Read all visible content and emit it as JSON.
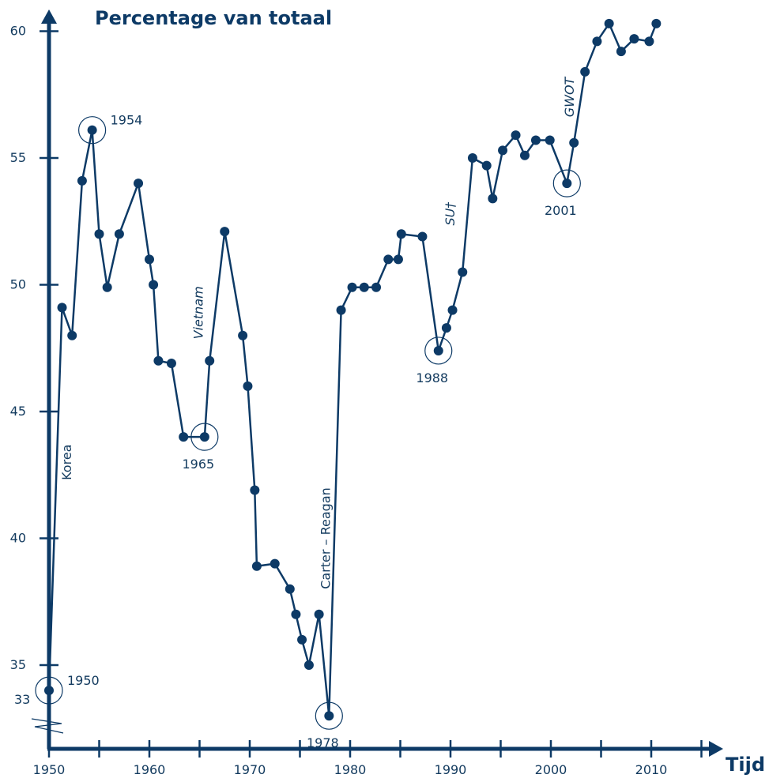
{
  "chart_data": {
    "type": "line",
    "title": "Percentage van totaal",
    "xlabel": "Tijd",
    "ylabel": "",
    "xlim": [
      1950,
      2010
    ],
    "ylim": [
      33,
      60
    ],
    "x_ticks": [
      1950,
      1960,
      1970,
      1980,
      1990,
      2000,
      2010
    ],
    "x_tick_labels": [
      "1950",
      "1960",
      "1970",
      "1980",
      "1990",
      "2000",
      "2010"
    ],
    "y_ticks": [
      35,
      40,
      45,
      50,
      55,
      60
    ],
    "y_tick_labels": [
      "35",
      "40",
      "45",
      "50",
      "55",
      "60"
    ],
    "y_break_label": "33",
    "grid": false,
    "line_color": "#0d3a66",
    "series": [
      {
        "points": [
          [
            1950,
            34
          ],
          [
            1951.3,
            49.1
          ],
          [
            1952.3,
            48
          ],
          [
            1953.3,
            54.1
          ],
          [
            1954.3,
            56.1
          ],
          [
            1955,
            52
          ],
          [
            1955.8,
            49.9
          ],
          [
            1957,
            52
          ],
          [
            1958.9,
            54
          ],
          [
            1960,
            51
          ],
          [
            1960.4,
            50
          ],
          [
            1960.9,
            47
          ],
          [
            1962.2,
            46.9
          ],
          [
            1963.4,
            44
          ],
          [
            1965.5,
            44
          ],
          [
            1966,
            47
          ],
          [
            1967.5,
            52.1
          ],
          [
            1969.3,
            48
          ],
          [
            1969.8,
            46
          ],
          [
            1970.5,
            41.9
          ],
          [
            1970.7,
            38.9
          ],
          [
            1972.5,
            39
          ],
          [
            1974,
            38
          ],
          [
            1974.6,
            37
          ],
          [
            1975.2,
            36
          ],
          [
            1975.9,
            35
          ],
          [
            1976.9,
            37
          ],
          [
            1977.9,
            33
          ],
          [
            1979.1,
            49
          ],
          [
            1980.2,
            49.9
          ],
          [
            1981.4,
            49.9
          ],
          [
            1982.6,
            49.9
          ],
          [
            1983.8,
            51
          ],
          [
            1984.8,
            51
          ],
          [
            1985.1,
            52
          ],
          [
            1987.2,
            51.9
          ],
          [
            1988.8,
            47.4
          ],
          [
            1989.6,
            48.3
          ],
          [
            1990.2,
            49
          ],
          [
            1991.2,
            50.5
          ],
          [
            1992.2,
            55
          ],
          [
            1993.6,
            54.7
          ],
          [
            1994.2,
            53.4
          ],
          [
            1995.2,
            55.3
          ],
          [
            1996.5,
            55.9
          ],
          [
            1997.4,
            55.1
          ],
          [
            1998.5,
            55.7
          ],
          [
            1999.9,
            55.7
          ],
          [
            2001.6,
            54
          ],
          [
            2002.3,
            55.6
          ],
          [
            2003.4,
            58.4
          ],
          [
            2004.6,
            59.6
          ],
          [
            2005.8,
            60.3
          ],
          [
            2007,
            59.2
          ],
          [
            2008.3,
            59.7
          ],
          [
            2009.8,
            59.6
          ],
          [
            2010.5,
            60.3
          ]
        ]
      }
    ],
    "highlighted_points": [
      {
        "label": "1950",
        "x": 1950,
        "y": 34,
        "text_side": "right"
      },
      {
        "label": "1954",
        "x": 1954.3,
        "y": 56.1,
        "text_side": "right"
      },
      {
        "label": "1965",
        "x": 1965.5,
        "y": 44,
        "text_side": "below"
      },
      {
        "label": "1978",
        "x": 1977.9,
        "y": 33,
        "text_side": "below"
      },
      {
        "label": "1988",
        "x": 1988.8,
        "y": 47.4,
        "text_side": "below"
      },
      {
        "label": "2001",
        "x": 2001.6,
        "y": 54,
        "text_side": "below"
      }
    ],
    "annotations": [
      {
        "text": "Korea",
        "x": 1952.2,
        "y": 43,
        "italic": false
      },
      {
        "text": "Vietnam",
        "x": 1965.3,
        "y": 48.9,
        "italic": true
      },
      {
        "text": "Carter – Reagan",
        "x": 1978,
        "y": 40,
        "italic": false
      },
      {
        "text": "SU†",
        "x": 1990.4,
        "y": 52.8,
        "italic": true
      },
      {
        "text": "GWOT",
        "x": 2002.3,
        "y": 57.4,
        "italic": true
      }
    ]
  }
}
